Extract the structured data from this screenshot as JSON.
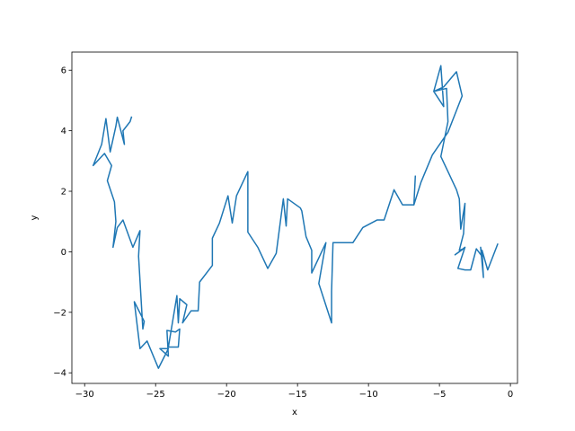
{
  "chart_data": {
    "type": "line",
    "title": "",
    "xlabel": "x",
    "ylabel": "y",
    "xlim": [
      -30.9,
      0.5
    ],
    "ylim": [
      -4.35,
      6.6
    ],
    "xticks": [
      -30,
      -25,
      -20,
      -15,
      -10,
      -5,
      0
    ],
    "yticks": [
      -4,
      -2,
      0,
      2,
      4,
      6
    ],
    "xtick_labels": [
      "−30",
      "−25",
      "−20",
      "−15",
      "−10",
      "−5",
      "0"
    ],
    "ytick_labels": [
      "−4",
      "−2",
      "0",
      "2",
      "4",
      "6"
    ],
    "grid": false,
    "series": [
      {
        "color": "#1f77b4",
        "x": [
          -0.9,
          -1.6,
          -2.0,
          -1.9,
          -2.1,
          -2.0,
          -2.4,
          -2.8,
          -3.2,
          -3.7,
          -3.2,
          -3.9,
          -3.3,
          -3.6,
          -3.3,
          -3.2,
          -3.5,
          -3.6,
          -3.8,
          -4.4,
          -4.9,
          -4.4,
          -4.5,
          -5.4,
          -4.7,
          -4.9,
          -5.4,
          -4.7,
          -3.8,
          -3.4,
          -4.4,
          -5.5,
          -6.3,
          -6.8,
          -6.7,
          -6.8,
          -7.6,
          -8.2,
          -8.9,
          -9.4,
          -10.4,
          -11.1,
          -11.9,
          -12.5,
          -12.6,
          -12.6,
          -13.5,
          -13.0,
          -13.5,
          -14.0,
          -14.0,
          -14.4,
          -14.7,
          -14.8,
          -15.7,
          -15.8,
          -16.0,
          -16.5,
          -17.1,
          -17.8,
          -18.5,
          -18.5,
          -19.3,
          -19.6,
          -19.9,
          -20.5,
          -21.0,
          -21.0,
          -21.9,
          -22.0,
          -22.0,
          -22.5,
          -23.1,
          -22.8,
          -23.3,
          -23.4,
          -23.5,
          -24.1,
          -23.4,
          -23.3,
          -23.6,
          -24.2,
          -24.1,
          -24.7,
          -24.1,
          -24.8,
          -25.6,
          -26.1,
          -26.5,
          -25.8,
          -25.9,
          -26.2,
          -26.1,
          -26.6,
          -27.3,
          -27.7,
          -28.0,
          -27.8,
          -27.9,
          -28.4,
          -28.1,
          -28.6,
          -29.4,
          -28.8,
          -28.5,
          -28.2,
          -27.8,
          -27.7,
          -27.2,
          -27.3,
          -26.8,
          -26.7
        ],
        "y": [
          0.25,
          -0.6,
          0.05,
          -0.85,
          0.15,
          -0.15,
          0.1,
          -0.6,
          -0.6,
          -0.55,
          0.15,
          -0.1,
          0.1,
          0.05,
          0.6,
          1.6,
          0.75,
          1.75,
          2.05,
          2.65,
          3.15,
          4.3,
          5.4,
          5.3,
          4.8,
          6.15,
          5.3,
          5.45,
          5.95,
          5.15,
          3.95,
          3.2,
          2.3,
          1.55,
          2.5,
          1.55,
          1.55,
          2.05,
          1.05,
          1.05,
          0.8,
          0.3,
          0.3,
          0.3,
          -1.3,
          -2.35,
          -1.05,
          0.3,
          -0.2,
          -0.7,
          0.05,
          0.5,
          1.35,
          1.45,
          1.75,
          0.85,
          1.75,
          -0.05,
          -0.55,
          0.15,
          0.65,
          2.65,
          1.85,
          0.95,
          1.85,
          0.95,
          0.45,
          -0.45,
          -1.0,
          -1.95,
          -1.95,
          -1.95,
          -2.35,
          -1.75,
          -1.55,
          -2.35,
          -1.45,
          -3.15,
          -3.15,
          -2.55,
          -2.65,
          -2.6,
          -3.45,
          -3.2,
          -3.2,
          -3.85,
          -2.95,
          -3.2,
          -1.65,
          -2.3,
          -2.55,
          -0.15,
          0.7,
          0.15,
          1.05,
          0.8,
          0.15,
          1.0,
          1.65,
          2.35,
          2.85,
          3.25,
          2.85,
          3.55,
          4.4,
          3.3,
          4.15,
          4.45,
          3.55,
          4.0,
          4.3,
          4.45
        ]
      }
    ]
  }
}
